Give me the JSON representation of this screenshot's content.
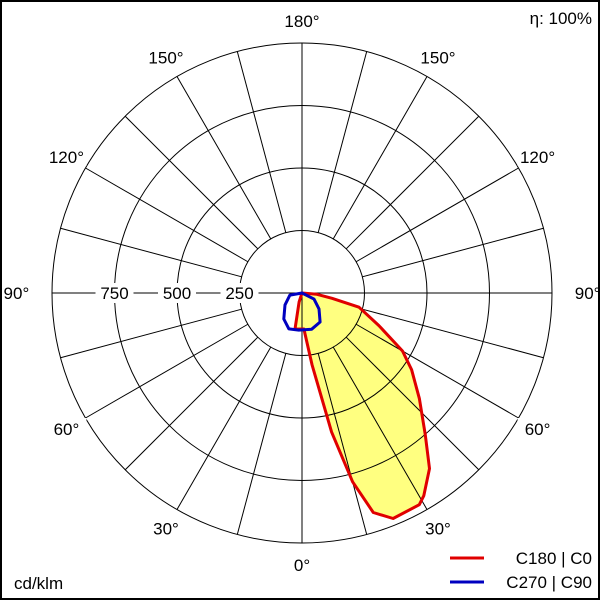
{
  "chart_data": {
    "type": "polar",
    "efficiency_label": "η: 100%",
    "unit_label": "cd/klm",
    "radial_ticks": [
      250,
      500,
      750
    ],
    "radial_tick_labels": [
      "250",
      "500",
      "750"
    ],
    "rmax": 1000,
    "angle_step_deg": 15,
    "angle_labels": [
      {
        "angle": 0,
        "text": "0°"
      },
      {
        "angle": 30,
        "text": "30°"
      },
      {
        "angle": -30,
        "text": "30°"
      },
      {
        "angle": 60,
        "text": "60°"
      },
      {
        "angle": -60,
        "text": "60°"
      },
      {
        "angle": 90,
        "text": "90°"
      },
      {
        "angle": -90,
        "text": "90°"
      },
      {
        "angle": 120,
        "text": "120°"
      },
      {
        "angle": -120,
        "text": "120°"
      },
      {
        "angle": 150,
        "text": "150°"
      },
      {
        "angle": -150,
        "text": "150°"
      },
      {
        "angle": 180,
        "text": "180°"
      }
    ],
    "grid": true,
    "legend_position": "bottom-right",
    "series": [
      {
        "name": "C180 | C0",
        "color": "#e00000",
        "fill": "#ffff80",
        "points": [
          [
            90,
            0
          ],
          [
            85,
            60
          ],
          [
            80,
            122
          ],
          [
            76,
            235
          ],
          [
            67,
            334
          ],
          [
            60,
            464
          ],
          [
            55,
            535
          ],
          [
            48,
            632
          ],
          [
            41,
            752
          ],
          [
            36,
            868
          ],
          [
            31,
            946
          ],
          [
            29,
            968
          ],
          [
            22,
            973
          ],
          [
            18,
            923
          ],
          [
            15,
            782
          ],
          [
            12,
            569
          ],
          [
            8,
            291
          ],
          [
            3,
            144
          ],
          [
            -11,
            147
          ],
          [
            -18,
            38
          ],
          [
            -90,
            0
          ]
        ]
      },
      {
        "name": "C270 | C90",
        "color": "#0000c0",
        "points": [
          [
            -90,
            0
          ],
          [
            -80,
            49
          ],
          [
            -55,
            83
          ],
          [
            -35,
            127
          ],
          [
            -20,
            153
          ],
          [
            -5,
            149
          ],
          [
            15,
            150
          ],
          [
            32,
            137
          ],
          [
            47,
            93
          ],
          [
            63,
            54
          ],
          [
            90,
            0
          ]
        ]
      }
    ]
  }
}
